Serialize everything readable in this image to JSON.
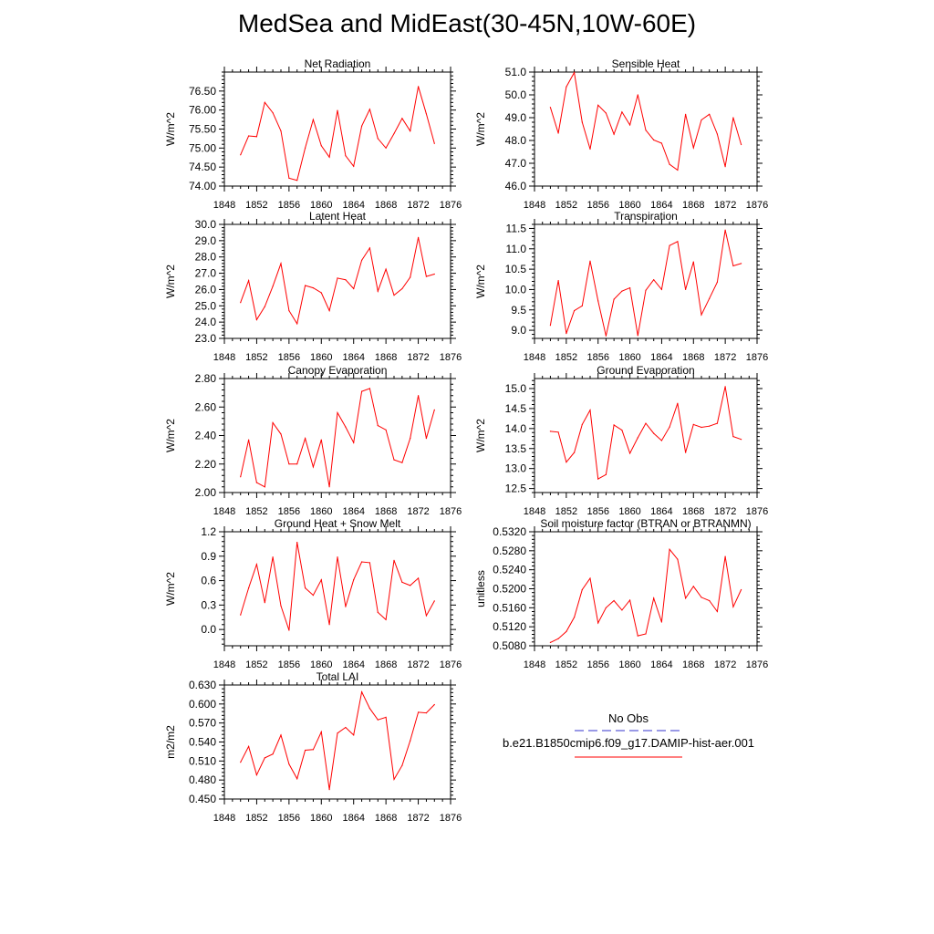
{
  "title": "MedSea and MidEast(30-45N,10W-60E)",
  "legend": {
    "entries": [
      {
        "label": "No Obs",
        "color": "#3333cc",
        "dash": true
      },
      {
        "label": "b.e21.B1850cmip6.f09_g17.DAMIP-hist-aer.001",
        "color": "#ff0000",
        "dash": false
      }
    ]
  },
  "chart_data": [
    {
      "type": "line",
      "title": "Net Radiation",
      "ylabel": "W/m^2",
      "xlim": [
        1848,
        1876
      ],
      "ylim": [
        74.0,
        77.0
      ],
      "xticks": [
        1848,
        1852,
        1856,
        1860,
        1864,
        1868,
        1872,
        1876
      ],
      "yticks": [
        74.0,
        74.5,
        75.0,
        75.5,
        76.0,
        76.5
      ],
      "ytick_labels": [
        "74.00",
        "74.50",
        "75.00",
        "75.50",
        "76.00",
        "76.50"
      ],
      "x": [
        1850,
        1851,
        1852,
        1853,
        1854,
        1855,
        1856,
        1857,
        1858,
        1859,
        1860,
        1861,
        1862,
        1863,
        1864,
        1865,
        1866,
        1867,
        1868,
        1869,
        1870,
        1871,
        1872,
        1873,
        1874
      ],
      "series": [
        {
          "name": "b.e21.B1850cmip6.f09_g17.DAMIP-hist-aer.001",
          "color": "#ff0000",
          "values": [
            74.82,
            75.32,
            75.3,
            76.2,
            75.93,
            75.45,
            74.21,
            74.15,
            75.0,
            75.75,
            75.06,
            74.76,
            75.99,
            74.8,
            74.52,
            75.58,
            76.02,
            75.25,
            75.0,
            75.38,
            75.78,
            75.45,
            76.62,
            75.9,
            75.12
          ]
        }
      ]
    },
    {
      "type": "line",
      "title": "Sensible Heat",
      "ylabel": "W/m^2",
      "xlim": [
        1848,
        1876
      ],
      "ylim": [
        46.0,
        51.0
      ],
      "xticks": [
        1848,
        1852,
        1856,
        1860,
        1864,
        1868,
        1872,
        1876
      ],
      "yticks": [
        46.0,
        47.0,
        48.0,
        49.0,
        50.0,
        51.0
      ],
      "ytick_labels": [
        "46.0",
        "47.0",
        "48.0",
        "49.0",
        "50.0",
        "51.0"
      ],
      "x": [
        1850,
        1851,
        1852,
        1853,
        1854,
        1855,
        1856,
        1857,
        1858,
        1859,
        1860,
        1861,
        1862,
        1863,
        1864,
        1865,
        1866,
        1867,
        1868,
        1869,
        1870,
        1871,
        1872,
        1873,
        1874
      ],
      "series": [
        {
          "name": "b.e21.B1850cmip6.f09_g17.DAMIP-hist-aer.001",
          "color": "#ff0000",
          "values": [
            49.45,
            48.32,
            50.35,
            50.98,
            48.8,
            47.62,
            49.55,
            49.2,
            48.27,
            49.25,
            48.68,
            50.0,
            48.45,
            48.02,
            47.88,
            46.95,
            46.7,
            49.15,
            47.68,
            48.9,
            49.15,
            48.28,
            46.85,
            49.0,
            47.82
          ]
        }
      ]
    },
    {
      "type": "line",
      "title": "Latent Heat",
      "ylabel": "W/m^2",
      "xlim": [
        1848,
        1876
      ],
      "ylim": [
        23.0,
        30.0
      ],
      "xticks": [
        1848,
        1852,
        1856,
        1860,
        1864,
        1868,
        1872,
        1876
      ],
      "yticks": [
        23.0,
        24.0,
        25.0,
        26.0,
        27.0,
        28.0,
        29.0,
        30.0
      ],
      "ytick_labels": [
        "23.0",
        "24.0",
        "25.0",
        "26.0",
        "27.0",
        "28.0",
        "29.0",
        "30.0"
      ],
      "x": [
        1850,
        1851,
        1852,
        1853,
        1854,
        1855,
        1856,
        1857,
        1858,
        1859,
        1860,
        1861,
        1862,
        1863,
        1864,
        1865,
        1866,
        1867,
        1868,
        1869,
        1870,
        1871,
        1872,
        1873,
        1874
      ],
      "series": [
        {
          "name": "b.e21.B1850cmip6.f09_g17.DAMIP-hist-aer.001",
          "color": "#ff0000",
          "values": [
            25.2,
            26.55,
            24.15,
            24.95,
            26.2,
            27.6,
            24.7,
            23.9,
            26.25,
            26.1,
            25.8,
            24.7,
            26.7,
            26.6,
            26.05,
            27.8,
            28.55,
            25.9,
            27.25,
            25.65,
            26.05,
            26.75,
            29.2,
            26.8,
            26.95
          ]
        }
      ]
    },
    {
      "type": "line",
      "title": "Transpiration",
      "ylabel": "W/m^2",
      "xlim": [
        1848,
        1876
      ],
      "ylim": [
        8.8,
        11.6
      ],
      "xticks": [
        1848,
        1852,
        1856,
        1860,
        1864,
        1868,
        1872,
        1876
      ],
      "yticks": [
        9.0,
        9.5,
        10.0,
        10.5,
        11.0,
        11.5
      ],
      "ytick_labels": [
        "9.0",
        "9.5",
        "10.0",
        "10.5",
        "11.0",
        "11.5"
      ],
      "x": [
        1850,
        1851,
        1852,
        1853,
        1854,
        1855,
        1856,
        1857,
        1858,
        1859,
        1860,
        1861,
        1862,
        1863,
        1864,
        1865,
        1866,
        1867,
        1868,
        1869,
        1870,
        1871,
        1872,
        1873,
        1874
      ],
      "series": [
        {
          "name": "b.e21.B1850cmip6.f09_g17.DAMIP-hist-aer.001",
          "color": "#ff0000",
          "values": [
            9.12,
            10.22,
            8.92,
            9.48,
            9.6,
            10.7,
            9.72,
            8.86,
            9.76,
            9.96,
            10.04,
            8.87,
            9.98,
            10.24,
            10.0,
            11.08,
            11.18,
            10.0,
            10.68,
            9.38,
            9.78,
            10.18,
            11.46,
            10.58,
            10.64
          ]
        }
      ]
    },
    {
      "type": "line",
      "title": "Canopy Evaporation",
      "ylabel": "W/m^2",
      "xlim": [
        1848,
        1876
      ],
      "ylim": [
        2.0,
        2.8
      ],
      "xticks": [
        1848,
        1852,
        1856,
        1860,
        1864,
        1868,
        1872,
        1876
      ],
      "yticks": [
        2.0,
        2.2,
        2.4,
        2.6,
        2.8
      ],
      "ytick_labels": [
        "2.00",
        "2.20",
        "2.40",
        "2.60",
        "2.80"
      ],
      "x": [
        1850,
        1851,
        1852,
        1853,
        1854,
        1855,
        1856,
        1857,
        1858,
        1859,
        1860,
        1861,
        1862,
        1863,
        1864,
        1865,
        1866,
        1867,
        1868,
        1869,
        1870,
        1871,
        1872,
        1873,
        1874
      ],
      "series": [
        {
          "name": "b.e21.B1850cmip6.f09_g17.DAMIP-hist-aer.001",
          "color": "#ff0000",
          "values": [
            2.11,
            2.37,
            2.07,
            2.04,
            2.49,
            2.41,
            2.2,
            2.2,
            2.38,
            2.18,
            2.37,
            2.04,
            2.56,
            2.46,
            2.35,
            2.71,
            2.73,
            2.47,
            2.44,
            2.23,
            2.21,
            2.38,
            2.68,
            2.38,
            2.58
          ]
        }
      ]
    },
    {
      "type": "line",
      "title": "Ground Evaporation",
      "ylabel": "W/m^2",
      "xlim": [
        1848,
        1876
      ],
      "ylim": [
        12.4,
        15.25
      ],
      "xticks": [
        1848,
        1852,
        1856,
        1860,
        1864,
        1868,
        1872,
        1876
      ],
      "yticks": [
        12.5,
        13.0,
        13.5,
        14.0,
        14.5,
        15.0
      ],
      "ytick_labels": [
        "12.5",
        "13.0",
        "13.5",
        "14.0",
        "14.5",
        "15.0"
      ],
      "x": [
        1850,
        1851,
        1852,
        1853,
        1854,
        1855,
        1856,
        1857,
        1858,
        1859,
        1860,
        1861,
        1862,
        1863,
        1864,
        1865,
        1866,
        1867,
        1868,
        1869,
        1870,
        1871,
        1872,
        1873,
        1874
      ],
      "series": [
        {
          "name": "b.e21.B1850cmip6.f09_g17.DAMIP-hist-aer.001",
          "color": "#ff0000",
          "values": [
            13.93,
            13.91,
            13.16,
            13.4,
            14.1,
            14.46,
            12.74,
            12.85,
            14.09,
            13.96,
            13.38,
            13.77,
            14.13,
            13.88,
            13.7,
            14.04,
            14.63,
            13.4,
            14.1,
            14.03,
            14.06,
            14.13,
            15.05,
            13.8,
            13.73
          ]
        }
      ]
    },
    {
      "type": "line",
      "title": "Ground Heat + Snow Melt",
      "ylabel": "W/m^2",
      "xlim": [
        1848,
        1876
      ],
      "ylim": [
        -0.2,
        1.2
      ],
      "xticks": [
        1848,
        1852,
        1856,
        1860,
        1864,
        1868,
        1872,
        1876
      ],
      "yticks": [
        0.0,
        0.3,
        0.6,
        0.9,
        1.2
      ],
      "ytick_labels": [
        "0.0",
        "0.3",
        "0.6",
        "0.9",
        "1.2"
      ],
      "x": [
        1850,
        1851,
        1852,
        1853,
        1854,
        1855,
        1856,
        1857,
        1858,
        1859,
        1860,
        1861,
        1862,
        1863,
        1864,
        1865,
        1866,
        1867,
        1868,
        1869,
        1870,
        1871,
        1872,
        1873,
        1874
      ],
      "series": [
        {
          "name": "b.e21.B1850cmip6.f09_g17.DAMIP-hist-aer.001",
          "color": "#ff0000",
          "values": [
            0.18,
            0.51,
            0.8,
            0.33,
            0.89,
            0.29,
            -0.01,
            1.07,
            0.51,
            0.42,
            0.61,
            0.06,
            0.89,
            0.28,
            0.61,
            0.83,
            0.82,
            0.21,
            0.12,
            0.85,
            0.58,
            0.54,
            0.63,
            0.17,
            0.35
          ]
        }
      ]
    },
    {
      "type": "line",
      "title": "Soil moisture factor (BTRAN or BTRANMN)",
      "ylabel": "unitless",
      "xlim": [
        1848,
        1876
      ],
      "ylim": [
        0.508,
        0.532
      ],
      "xticks": [
        1848,
        1852,
        1856,
        1860,
        1864,
        1868,
        1872,
        1876
      ],
      "yticks": [
        0.508,
        0.512,
        0.516,
        0.52,
        0.524,
        0.528,
        0.532
      ],
      "ytick_labels": [
        "0.5080",
        "0.5120",
        "0.5160",
        "0.5200",
        "0.5240",
        "0.5280",
        "0.5320"
      ],
      "x": [
        1850,
        1851,
        1852,
        1853,
        1854,
        1855,
        1856,
        1857,
        1858,
        1859,
        1860,
        1861,
        1862,
        1863,
        1864,
        1865,
        1866,
        1867,
        1868,
        1869,
        1870,
        1871,
        1872,
        1873,
        1874
      ],
      "series": [
        {
          "name": "b.e21.B1850cmip6.f09_g17.DAMIP-hist-aer.001",
          "color": "#ff0000",
          "values": [
            0.5087,
            0.5095,
            0.511,
            0.514,
            0.5198,
            0.5222,
            0.5128,
            0.516,
            0.5175,
            0.5155,
            0.5176,
            0.5101,
            0.5105,
            0.518,
            0.513,
            0.5283,
            0.5262,
            0.518,
            0.5205,
            0.5182,
            0.5175,
            0.5152,
            0.5268,
            0.5162,
            0.5198
          ]
        }
      ]
    },
    {
      "type": "line",
      "title": "Total LAI",
      "ylabel": "m2/m2",
      "xlim": [
        1848,
        1876
      ],
      "ylim": [
        0.45,
        0.63
      ],
      "xticks": [
        1848,
        1852,
        1856,
        1860,
        1864,
        1868,
        1872,
        1876
      ],
      "yticks": [
        0.45,
        0.48,
        0.51,
        0.54,
        0.57,
        0.6,
        0.63
      ],
      "ytick_labels": [
        "0.450",
        "0.480",
        "0.510",
        "0.540",
        "0.570",
        "0.600",
        "0.630"
      ],
      "x": [
        1850,
        1851,
        1852,
        1853,
        1854,
        1855,
        1856,
        1857,
        1858,
        1859,
        1860,
        1861,
        1862,
        1863,
        1864,
        1865,
        1866,
        1867,
        1868,
        1869,
        1870,
        1871,
        1872,
        1873,
        1874
      ],
      "series": [
        {
          "name": "b.e21.B1850cmip6.f09_g17.DAMIP-hist-aer.001",
          "color": "#ff0000",
          "values": [
            0.508,
            0.533,
            0.488,
            0.515,
            0.521,
            0.551,
            0.505,
            0.482,
            0.527,
            0.528,
            0.556,
            0.465,
            0.554,
            0.563,
            0.551,
            0.619,
            0.593,
            0.575,
            0.579,
            0.481,
            0.503,
            0.542,
            0.587,
            0.586,
            0.599
          ]
        }
      ]
    }
  ]
}
